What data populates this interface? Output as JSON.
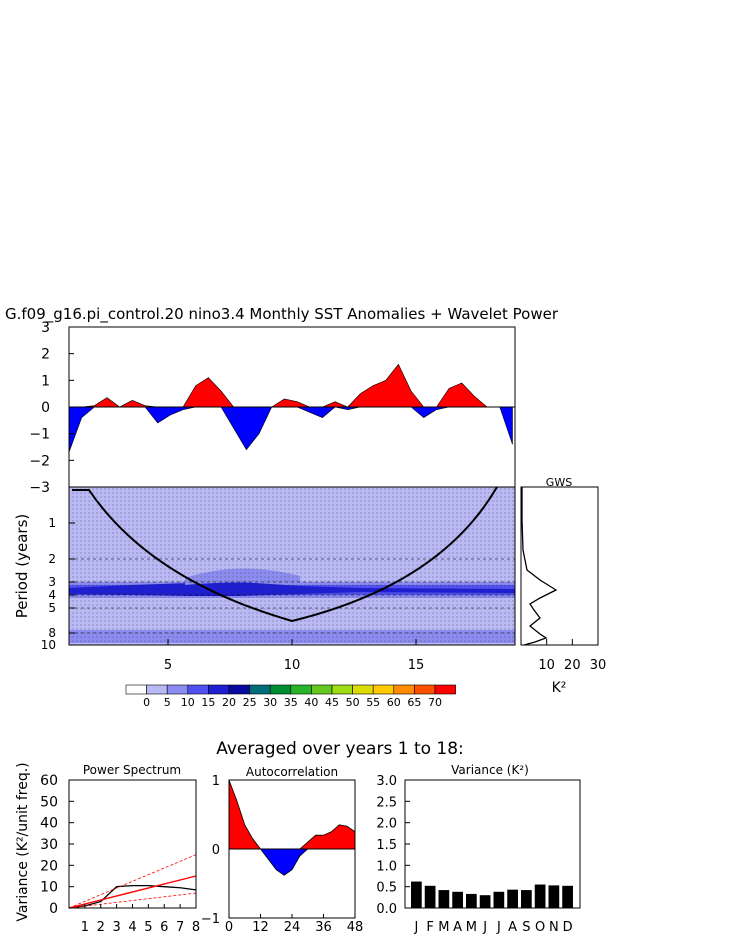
{
  "figure": {
    "title": "G.f09_g16.pi_control.20 nino3.4 Monthly SST Anomalies + Wavelet Power",
    "averaged_title": "Averaged over years 1 to 18:"
  },
  "colors": {
    "positive": "#ff0000",
    "negative": "#0000ff",
    "wavelet_base": "#b9b9f5"
  },
  "chart_data": [
    {
      "id": "timeseries",
      "type": "area",
      "xlim": [
        1,
        18.6
      ],
      "ylim": [
        -3,
        3
      ],
      "yticks": [
        "3",
        "2",
        "1",
        "0",
        "−1",
        "−2",
        "−3"
      ],
      "x": [
        1,
        1.5,
        2,
        2.5,
        3,
        3.5,
        4,
        4.5,
        5,
        5.5,
        6,
        6.5,
        7,
        7.5,
        8,
        8.5,
        9,
        9.5,
        10,
        10.5,
        11,
        11.5,
        12,
        12.5,
        13,
        13.5,
        14,
        14.5,
        15,
        15.5,
        16,
        16.5,
        17,
        17.5,
        18,
        18.5
      ],
      "y": [
        -1.7,
        -0.4,
        0.05,
        0.35,
        0.0,
        0.25,
        0.05,
        -0.6,
        -0.3,
        -0.1,
        0.8,
        1.1,
        0.6,
        -0.8,
        -1.6,
        -1.0,
        0.0,
        0.3,
        0.2,
        -0.2,
        -0.4,
        0.2,
        -0.1,
        0.5,
        0.8,
        1.0,
        1.6,
        0.6,
        -0.4,
        -0.1,
        0.7,
        0.9,
        0.4,
        0.0,
        0.0,
        -1.4
      ]
    },
    {
      "id": "wavelet",
      "type": "heatmap",
      "ylabel": "Period (years)",
      "xticks": [
        "5",
        "10",
        "15"
      ],
      "yticks": [
        "1",
        "2",
        "3",
        "4",
        "5",
        "8",
        "10"
      ],
      "colorbar_labels": [
        "0",
        "5",
        "10",
        "15",
        "20",
        "25",
        "30",
        "35",
        "40",
        "45",
        "50",
        "55",
        "60",
        "65",
        "70"
      ],
      "colorbar_colors": [
        "#ffffff",
        "#b9b9f5",
        "#8c8cf0",
        "#5050f0",
        "#1e1ed2",
        "#0a0aa0",
        "#006e78",
        "#008c32",
        "#28b428",
        "#64c81e",
        "#a0dc14",
        "#dcdc00",
        "#ffc800",
        "#ff8c00",
        "#ff5000",
        "#ff0000"
      ]
    },
    {
      "id": "gws",
      "type": "line",
      "title": "GWS",
      "xlabel": "K²",
      "xticks": [
        "10",
        "20",
        "30"
      ],
      "xlim": [
        0,
        30
      ]
    },
    {
      "id": "power-spectrum",
      "type": "line",
      "title": "Power Spectrum",
      "ylabel": "Variance (K²/unit freq.)",
      "xlim": [
        0,
        8
      ],
      "ylim": [
        0,
        60
      ],
      "xticks": [
        "1",
        "2",
        "3",
        "4",
        "5",
        "6",
        "7",
        "8"
      ],
      "yticks": [
        "60",
        "50",
        "40",
        "30",
        "20",
        "10",
        "0"
      ],
      "spectrum": {
        "x": [
          0,
          1,
          2,
          3,
          4,
          5,
          6,
          7,
          8
        ],
        "y": [
          0,
          1,
          3,
          10,
          10.5,
          10.5,
          10,
          9.5,
          8.5
        ]
      }
    },
    {
      "id": "autocorrelation",
      "type": "area",
      "title": "Autocorrelation",
      "xlim": [
        0,
        48
      ],
      "ylim": [
        -1,
        1
      ],
      "xticks": [
        "0",
        "12",
        "24",
        "36",
        "48"
      ],
      "yticks": [
        "1",
        "0",
        "−1"
      ],
      "x": [
        0,
        3,
        6,
        9,
        12,
        15,
        18,
        21,
        24,
        27,
        30,
        33,
        36,
        39,
        42,
        45,
        48
      ],
      "y": [
        1.0,
        0.7,
        0.35,
        0.15,
        0.0,
        -0.15,
        -0.3,
        -0.38,
        -0.3,
        -0.1,
        0.1,
        0.2,
        0.2,
        0.25,
        0.35,
        0.33,
        0.25
      ]
    },
    {
      "id": "variance",
      "type": "bar",
      "title": "Variance (K²)",
      "categories": [
        "J",
        "F",
        "M",
        "A",
        "M",
        "J",
        "J",
        "A",
        "S",
        "O",
        "N",
        "D"
      ],
      "values": [
        0.62,
        0.52,
        0.42,
        0.38,
        0.33,
        0.3,
        0.38,
        0.43,
        0.42,
        0.55,
        0.53,
        0.52
      ],
      "ylim": [
        0,
        3
      ],
      "yticks": [
        "3.0",
        "2.5",
        "2.0",
        "1.5",
        "1.0",
        "0.5",
        "0.0"
      ]
    }
  ]
}
